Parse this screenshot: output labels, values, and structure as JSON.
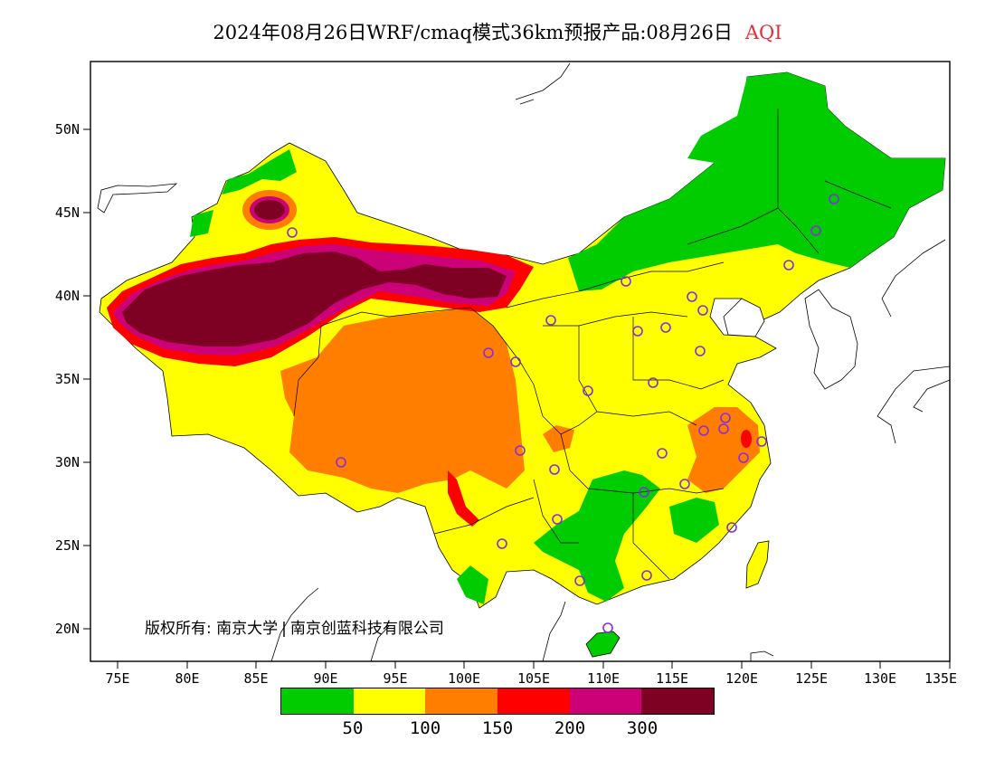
{
  "title": {
    "main": "2024年08月26日WRF/cmaq模式36km预报产品:08月26日",
    "variable": "AQI"
  },
  "axes": {
    "lat_labels": [
      "50N",
      "45N",
      "40N",
      "35N",
      "30N",
      "25N",
      "20N"
    ],
    "lon_labels": [
      "75E",
      "80E",
      "85E",
      "90E",
      "95E",
      "100E",
      "105E",
      "110E",
      "115E",
      "120E",
      "125E",
      "130E",
      "135E"
    ]
  },
  "copyright": {
    "prefix": "版权所有:",
    "org1": "南京大学",
    "org2": "南京创蓝科技有限公司"
  },
  "legend": {
    "colors": [
      "#00cc00",
      "#ffff00",
      "#ff7e00",
      "#ff0000",
      "#cc0077",
      "#7e0023"
    ],
    "ticks": [
      "50",
      "100",
      "150",
      "200",
      "300"
    ]
  },
  "colors": {
    "good": "#00cc00",
    "moderate": "#ffff00",
    "usg": "#ff7e00",
    "unhealthy": "#ff0000",
    "very_unhealthy": "#cc0077",
    "hazardous": "#7e0023",
    "station_ring": "#8a2be2"
  }
}
